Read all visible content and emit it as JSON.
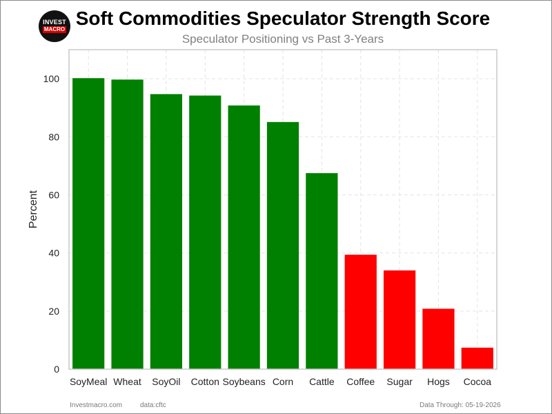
{
  "logo": {
    "line1": "INVEST",
    "line2": "MACRO",
    "colors": {
      "background": "#111111",
      "accent": "#d40000"
    }
  },
  "header": {
    "title": "Soft Commodities Speculator Strength Score",
    "subtitle": "Speculator Positioning vs Past 3-Years"
  },
  "footer": {
    "site": "Investmacro.com",
    "source": "data:cftc",
    "date_note": "Data Through: 05-19-2026"
  },
  "chart_data": {
    "type": "bar",
    "title": "Soft Commodities Speculator Strength Score",
    "subtitle": "Speculator Positioning vs Past 3-Years",
    "xlabel": "",
    "ylabel": "Percent",
    "categories": [
      "SoyMeal",
      "Wheat",
      "SoyOil",
      "Cotton",
      "Soybeans",
      "Corn",
      "Cattle",
      "Coffee",
      "Sugar",
      "Hogs",
      "Cocoa"
    ],
    "values": [
      100.2,
      99.7,
      94.7,
      94.2,
      90.8,
      85.1,
      67.5,
      39.4,
      34.0,
      20.8,
      7.4
    ],
    "ylim": [
      0,
      110
    ],
    "yticks": [
      0,
      20,
      40,
      60,
      80,
      100
    ],
    "grid": true,
    "colors": {
      "above_50": "#008000",
      "below_50": "#ff0000",
      "grid": "#e3e3e3",
      "axis": "#c8c8c8"
    }
  }
}
